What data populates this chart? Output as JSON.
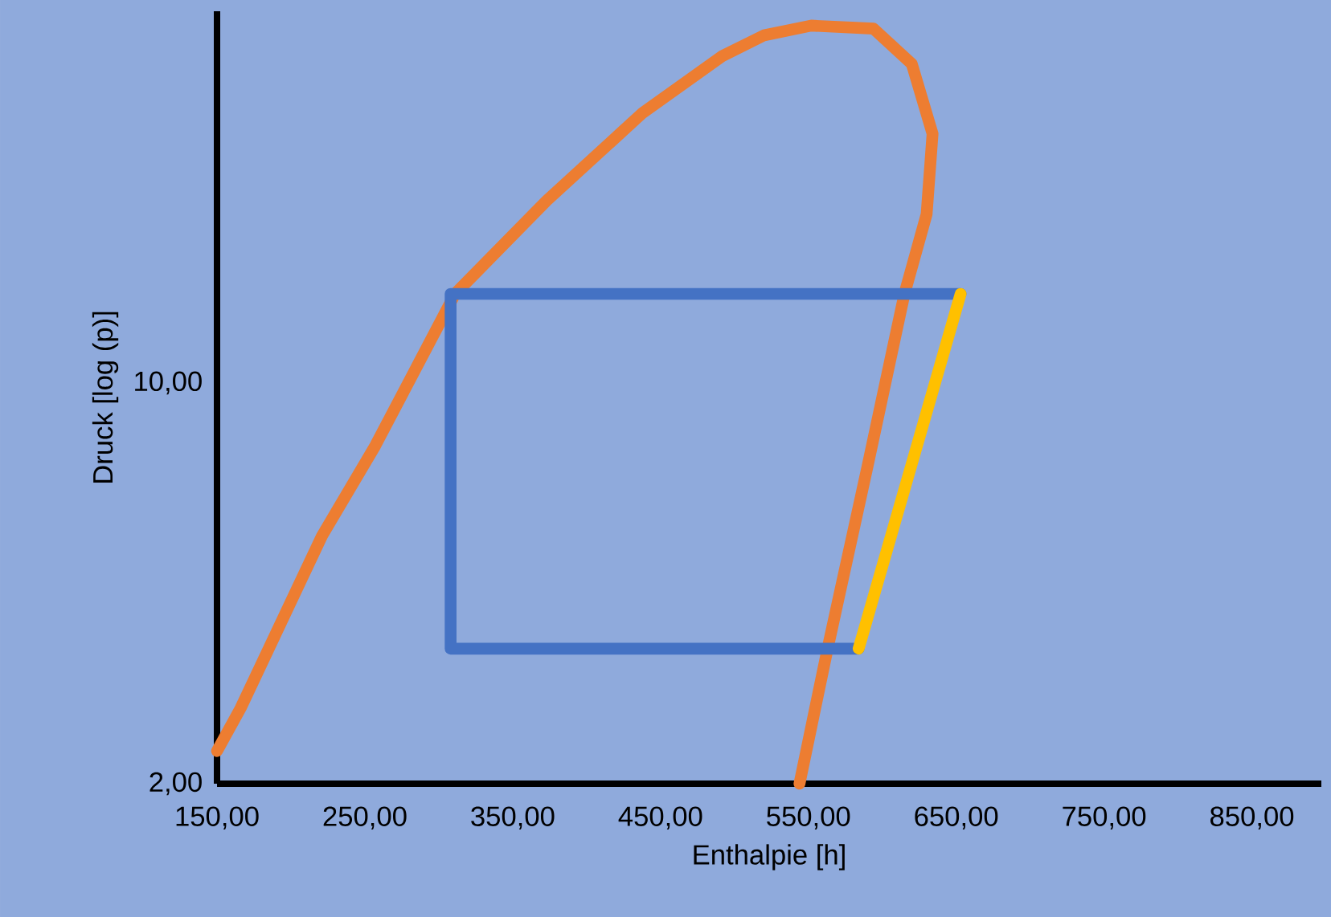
{
  "chart_data": {
    "type": "line",
    "xlabel": "Enthalpie [h]",
    "ylabel": "Druck [log (p)]",
    "log": "y",
    "xlim": [
      150,
      897
    ],
    "ylim": [
      2,
      44.5
    ],
    "xticks": [
      {
        "value": 150,
        "label": "150,00"
      },
      {
        "value": 250,
        "label": "250,00"
      },
      {
        "value": 350,
        "label": "350,00"
      },
      {
        "value": 450,
        "label": "450,00"
      },
      {
        "value": 550,
        "label": "550,00"
      },
      {
        "value": 650,
        "label": "650,00"
      },
      {
        "value": 750,
        "label": "750,00"
      },
      {
        "value": 850,
        "label": "850,00"
      }
    ],
    "yticks": [
      {
        "value": 2,
        "label": "2,00"
      },
      {
        "value": 10,
        "label": "10,00"
      }
    ],
    "grid": false,
    "marker": "none",
    "line_style": "solid",
    "series": [
      {
        "color": "#ed7d31",
        "x": [
          150,
          166,
          221,
          257,
          311,
          373,
          438,
          492,
          520,
          552,
          594,
          620,
          634,
          630,
          615,
          590,
          563,
          544
        ],
        "values": [
          2.28,
          2.71,
          5.41,
          7.77,
          14.3,
          20.8,
          29.6,
          37.2,
          40.4,
          42.0,
          41.5,
          36.0,
          27.2,
          19.7,
          14.3,
          7.15,
          3.44,
          2.0
        ]
      },
      {
        "color": "#4472c4",
        "x": [
          584,
          308,
          308,
          653
        ],
        "values": [
          3.44,
          3.44,
          14.3,
          14.3
        ]
      },
      {
        "color": "#ffc000",
        "x": [
          653,
          584
        ],
        "values": [
          14.3,
          3.44
        ]
      }
    ]
  }
}
